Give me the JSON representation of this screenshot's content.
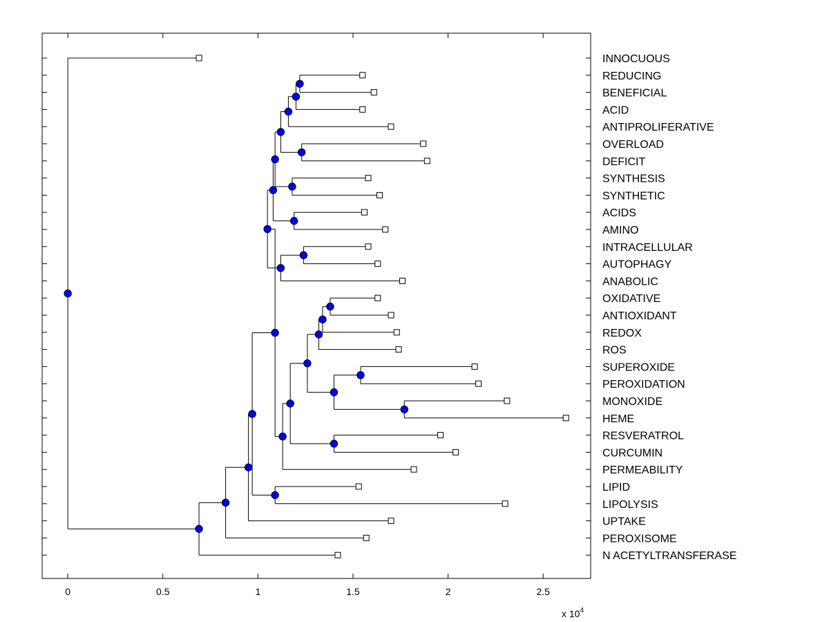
{
  "chart_data": {
    "type": "dendrogram",
    "title": "",
    "xlabel": "",
    "ylabel": "",
    "x_axis_multiplier": {
      "base": "x 10",
      "exponent": "4"
    },
    "xlim": [
      -0.135,
      2.75
    ],
    "xticks": [
      0,
      0.5,
      1,
      1.5,
      2,
      2.5
    ],
    "xtick_labels": [
      "0",
      "0.5",
      "1",
      "1.5",
      "2",
      "2.5"
    ],
    "grid": false,
    "node_color": "#0000ff",
    "leaf_marker_color": "#ffffff",
    "leaves": [
      {
        "label": "INNOCUOUS",
        "x": 0.69
      },
      {
        "label": "REDUCING",
        "x": 1.55
      },
      {
        "label": "BENEFICIAL",
        "x": 1.61
      },
      {
        "label": "ACID",
        "x": 1.55
      },
      {
        "label": "ANTIPROLIFERATIVE",
        "x": 1.7
      },
      {
        "label": "OVERLOAD",
        "x": 1.87
      },
      {
        "label": "DEFICIT",
        "x": 1.89
      },
      {
        "label": "SYNTHESIS",
        "x": 1.58
      },
      {
        "label": "SYNTHETIC",
        "x": 1.64
      },
      {
        "label": "ACIDS",
        "x": 1.56
      },
      {
        "label": "AMINO",
        "x": 1.67
      },
      {
        "label": "INTRACELLULAR",
        "x": 1.58
      },
      {
        "label": "AUTOPHAGY",
        "x": 1.63
      },
      {
        "label": "ANABOLIC",
        "x": 1.76
      },
      {
        "label": "OXIDATIVE",
        "x": 1.63
      },
      {
        "label": "ANTIOXIDANT",
        "x": 1.7
      },
      {
        "label": "REDOX",
        "x": 1.73
      },
      {
        "label": "ROS",
        "x": 1.74
      },
      {
        "label": "SUPEROXIDE",
        "x": 2.14
      },
      {
        "label": "PEROXIDATION",
        "x": 2.16
      },
      {
        "label": "MONOXIDE",
        "x": 2.31
      },
      {
        "label": "HEME",
        "x": 2.62
      },
      {
        "label": "RESVERATROL",
        "x": 1.96
      },
      {
        "label": "CURCUMIN",
        "x": 2.04
      },
      {
        "label": "PERMEABILITY",
        "x": 1.82
      },
      {
        "label": "LIPID",
        "x": 1.53
      },
      {
        "label": "LIPOLYSIS",
        "x": 2.3
      },
      {
        "label": "UPTAKE",
        "x": 1.7
      },
      {
        "label": "PEROXISOME",
        "x": 1.57
      },
      {
        "label": "N ACETYLTRANSFERASE",
        "x": 1.42
      }
    ],
    "merges": [
      {
        "id": "n1",
        "x": 1.22,
        "children": [
          "L1",
          "L2"
        ]
      },
      {
        "id": "n2",
        "x": 1.2,
        "children": [
          "n1",
          "L3"
        ]
      },
      {
        "id": "n3",
        "x": 1.16,
        "children": [
          "n2",
          "L4"
        ]
      },
      {
        "id": "n4",
        "x": 1.23,
        "children": [
          "L5",
          "L6"
        ]
      },
      {
        "id": "n5",
        "x": 1.12,
        "children": [
          "n3",
          "n4"
        ]
      },
      {
        "id": "n6",
        "x": 1.18,
        "children": [
          "L7",
          "L8"
        ]
      },
      {
        "id": "n7",
        "x": 1.19,
        "children": [
          "L9",
          "L10"
        ]
      },
      {
        "id": "n8",
        "x": 1.09,
        "children": [
          "n5",
          "n6"
        ]
      },
      {
        "id": "n9",
        "x": 1.08,
        "children": [
          "n8",
          "n7"
        ]
      },
      {
        "id": "n10",
        "x": 1.24,
        "children": [
          "L11",
          "L12"
        ]
      },
      {
        "id": "n11",
        "x": 1.12,
        "children": [
          "n10",
          "L13"
        ]
      },
      {
        "id": "n12",
        "x": 1.05,
        "children": [
          "n9",
          "n11"
        ]
      },
      {
        "id": "n13",
        "x": 1.38,
        "children": [
          "L14",
          "L15"
        ]
      },
      {
        "id": "n14",
        "x": 1.34,
        "children": [
          "n13",
          "L16"
        ]
      },
      {
        "id": "n15",
        "x": 1.32,
        "children": [
          "n14",
          "L17"
        ]
      },
      {
        "id": "n16",
        "x": 1.54,
        "children": [
          "L18",
          "L19"
        ]
      },
      {
        "id": "n17",
        "x": 1.77,
        "children": [
          "L20",
          "L21"
        ]
      },
      {
        "id": "n18",
        "x": 1.4,
        "children": [
          "n16",
          "n17"
        ]
      },
      {
        "id": "n19",
        "x": 1.26,
        "children": [
          "n15",
          "n18"
        ]
      },
      {
        "id": "n20",
        "x": 1.4,
        "children": [
          "L22",
          "L23"
        ]
      },
      {
        "id": "n21",
        "x": 1.17,
        "children": [
          "n19",
          "n20"
        ]
      },
      {
        "id": "n22",
        "x": 1.13,
        "children": [
          "n21",
          "L24"
        ]
      },
      {
        "id": "n23",
        "x": 1.09,
        "children": [
          "n12",
          "n22"
        ]
      },
      {
        "id": "n24",
        "x": 1.09,
        "children": [
          "L25",
          "L26"
        ]
      },
      {
        "id": "n25",
        "x": 0.97,
        "children": [
          "n23",
          "n24"
        ]
      },
      {
        "id": "n26",
        "x": 0.95,
        "children": [
          "n25",
          "L27"
        ]
      },
      {
        "id": "n27",
        "x": 0.83,
        "children": [
          "n26",
          "L28"
        ]
      },
      {
        "id": "n28",
        "x": 0.69,
        "children": [
          "n27",
          "L29"
        ]
      },
      {
        "id": "n29",
        "x": 0.0,
        "children": [
          "L0",
          "n28"
        ]
      }
    ]
  }
}
